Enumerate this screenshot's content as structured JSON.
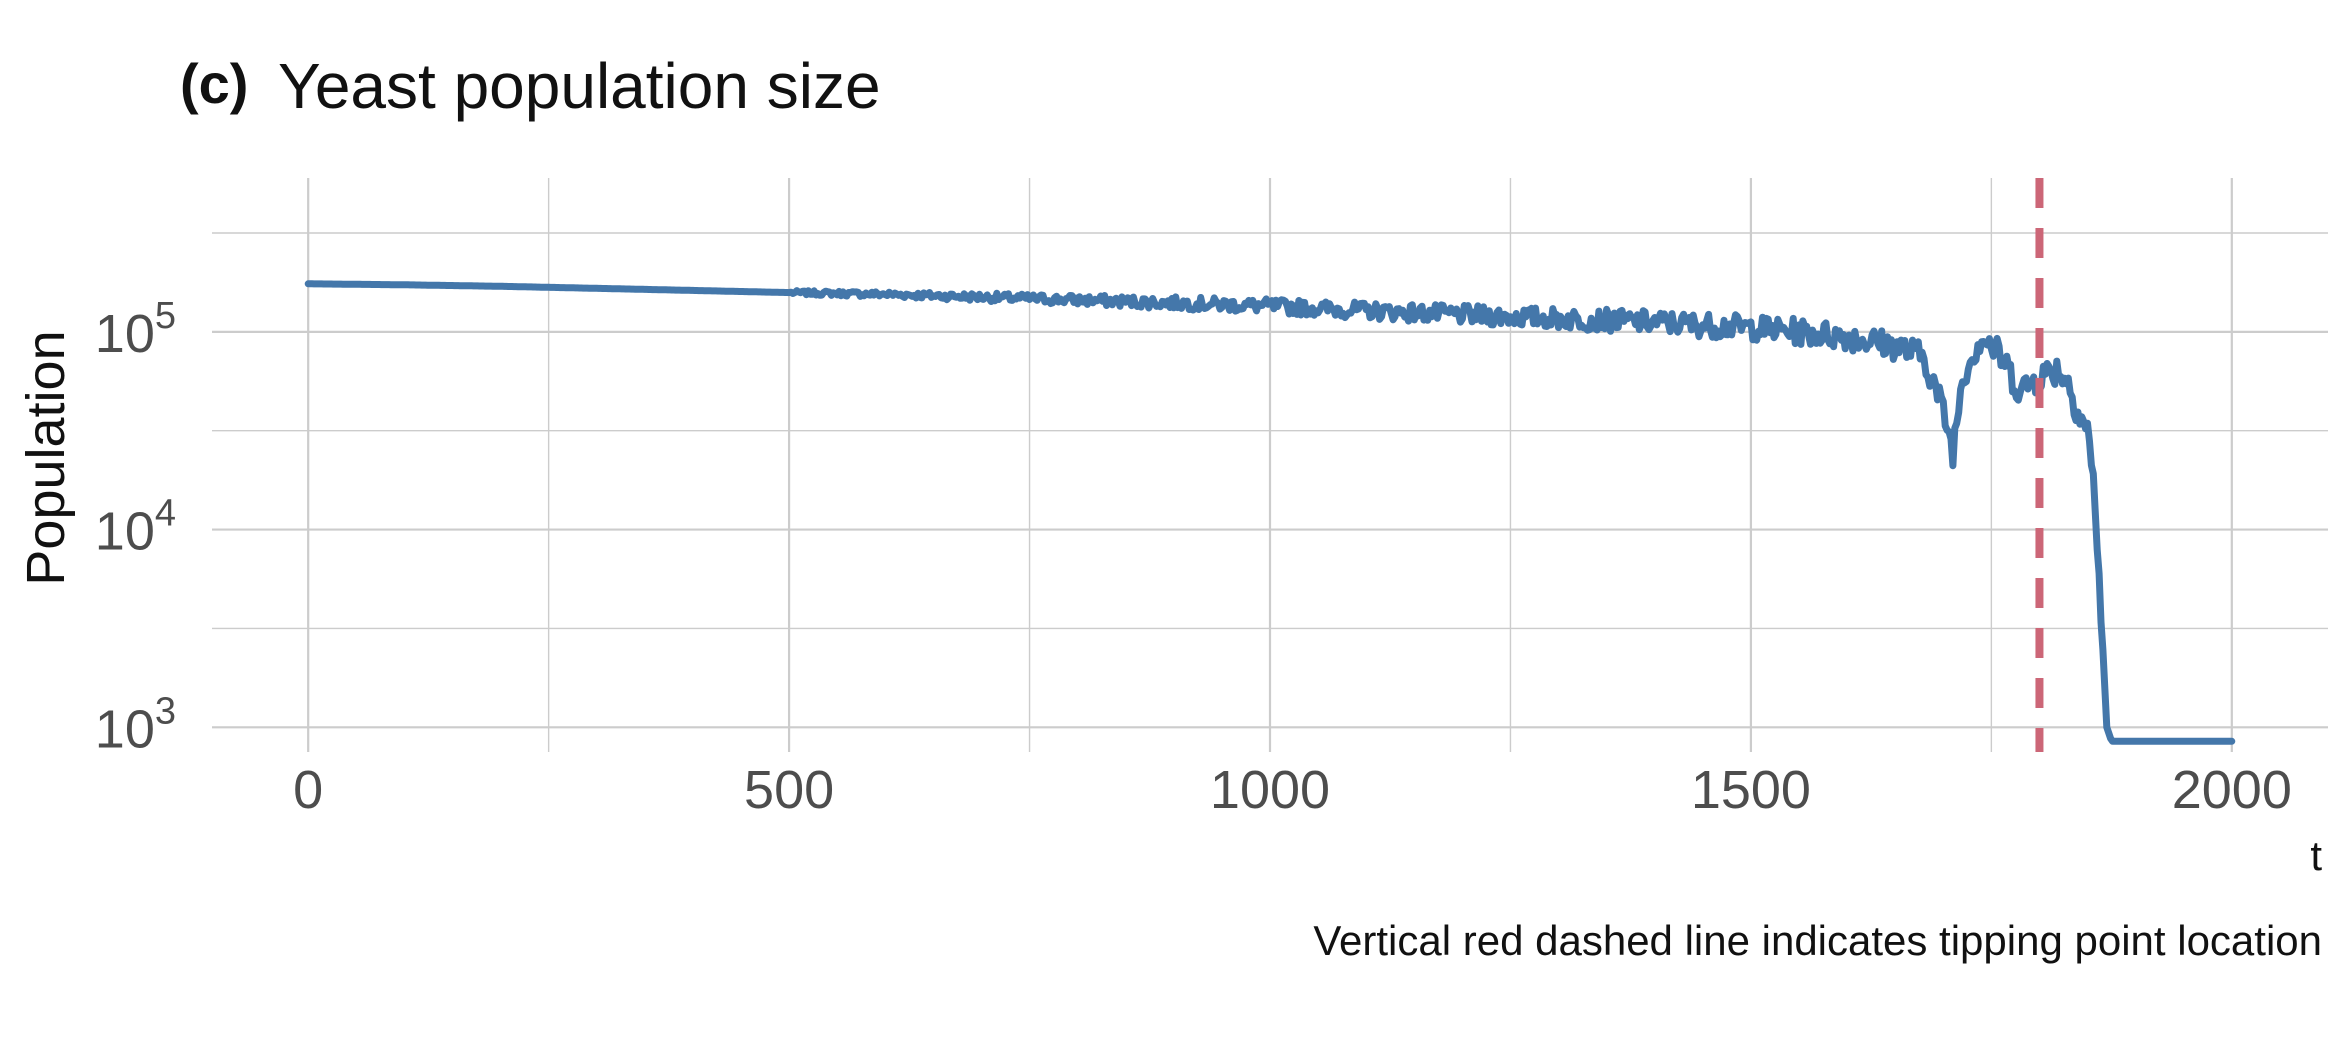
{
  "chart_data": {
    "type": "line",
    "panel_tag": "(c)",
    "title": "Yeast population size",
    "xlabel": "t",
    "ylabel": "Population",
    "caption": "Vertical red dashed line indicates tipping point location",
    "x_scale": "linear",
    "y_scale": "log10",
    "xlim": [
      -100,
      2100
    ],
    "ylim": [
      750,
      600000
    ],
    "x_ticks": [
      0,
      500,
      1000,
      1500,
      2000
    ],
    "x_tick_labels": [
      "0",
      "500",
      "1000",
      "1500",
      "2000"
    ],
    "y_ticks": [
      1000,
      10000,
      100000
    ],
    "y_tick_labels": [
      {
        "base": "10",
        "exp": "3"
      },
      {
        "base": "10",
        "exp": "4"
      },
      {
        "base": "10",
        "exp": "5"
      }
    ],
    "grid": true,
    "tipping_point_x": 1800,
    "line_color": "#4477aa",
    "tipping_color": "#cc6677",
    "series": [
      {
        "x": [
          0,
          100,
          200,
          300,
          400,
          500,
          600,
          700,
          800,
          900,
          1000,
          1100,
          1200,
          1300,
          1400,
          1500,
          1550,
          1600,
          1650,
          1680,
          1700,
          1710,
          1720,
          1740,
          1760,
          1780,
          1800,
          1820,
          1830,
          1840,
          1850,
          1855,
          1860,
          1865,
          1870,
          1875,
          1880,
          1900,
          2000
        ],
        "y": [
          175000,
          173000,
          170000,
          166000,
          162000,
          158000,
          155000,
          150000,
          145000,
          140000,
          135000,
          128000,
          122000,
          117000,
          112000,
          105000,
          100000,
          95000,
          85000,
          75000,
          40000,
          25000,
          60000,
          95000,
          75000,
          50000,
          60000,
          65000,
          55000,
          40000,
          32000,
          20000,
          9000,
          3000,
          1000,
          850,
          850,
          850,
          850
        ],
        "noise_start": 500
      }
    ]
  }
}
